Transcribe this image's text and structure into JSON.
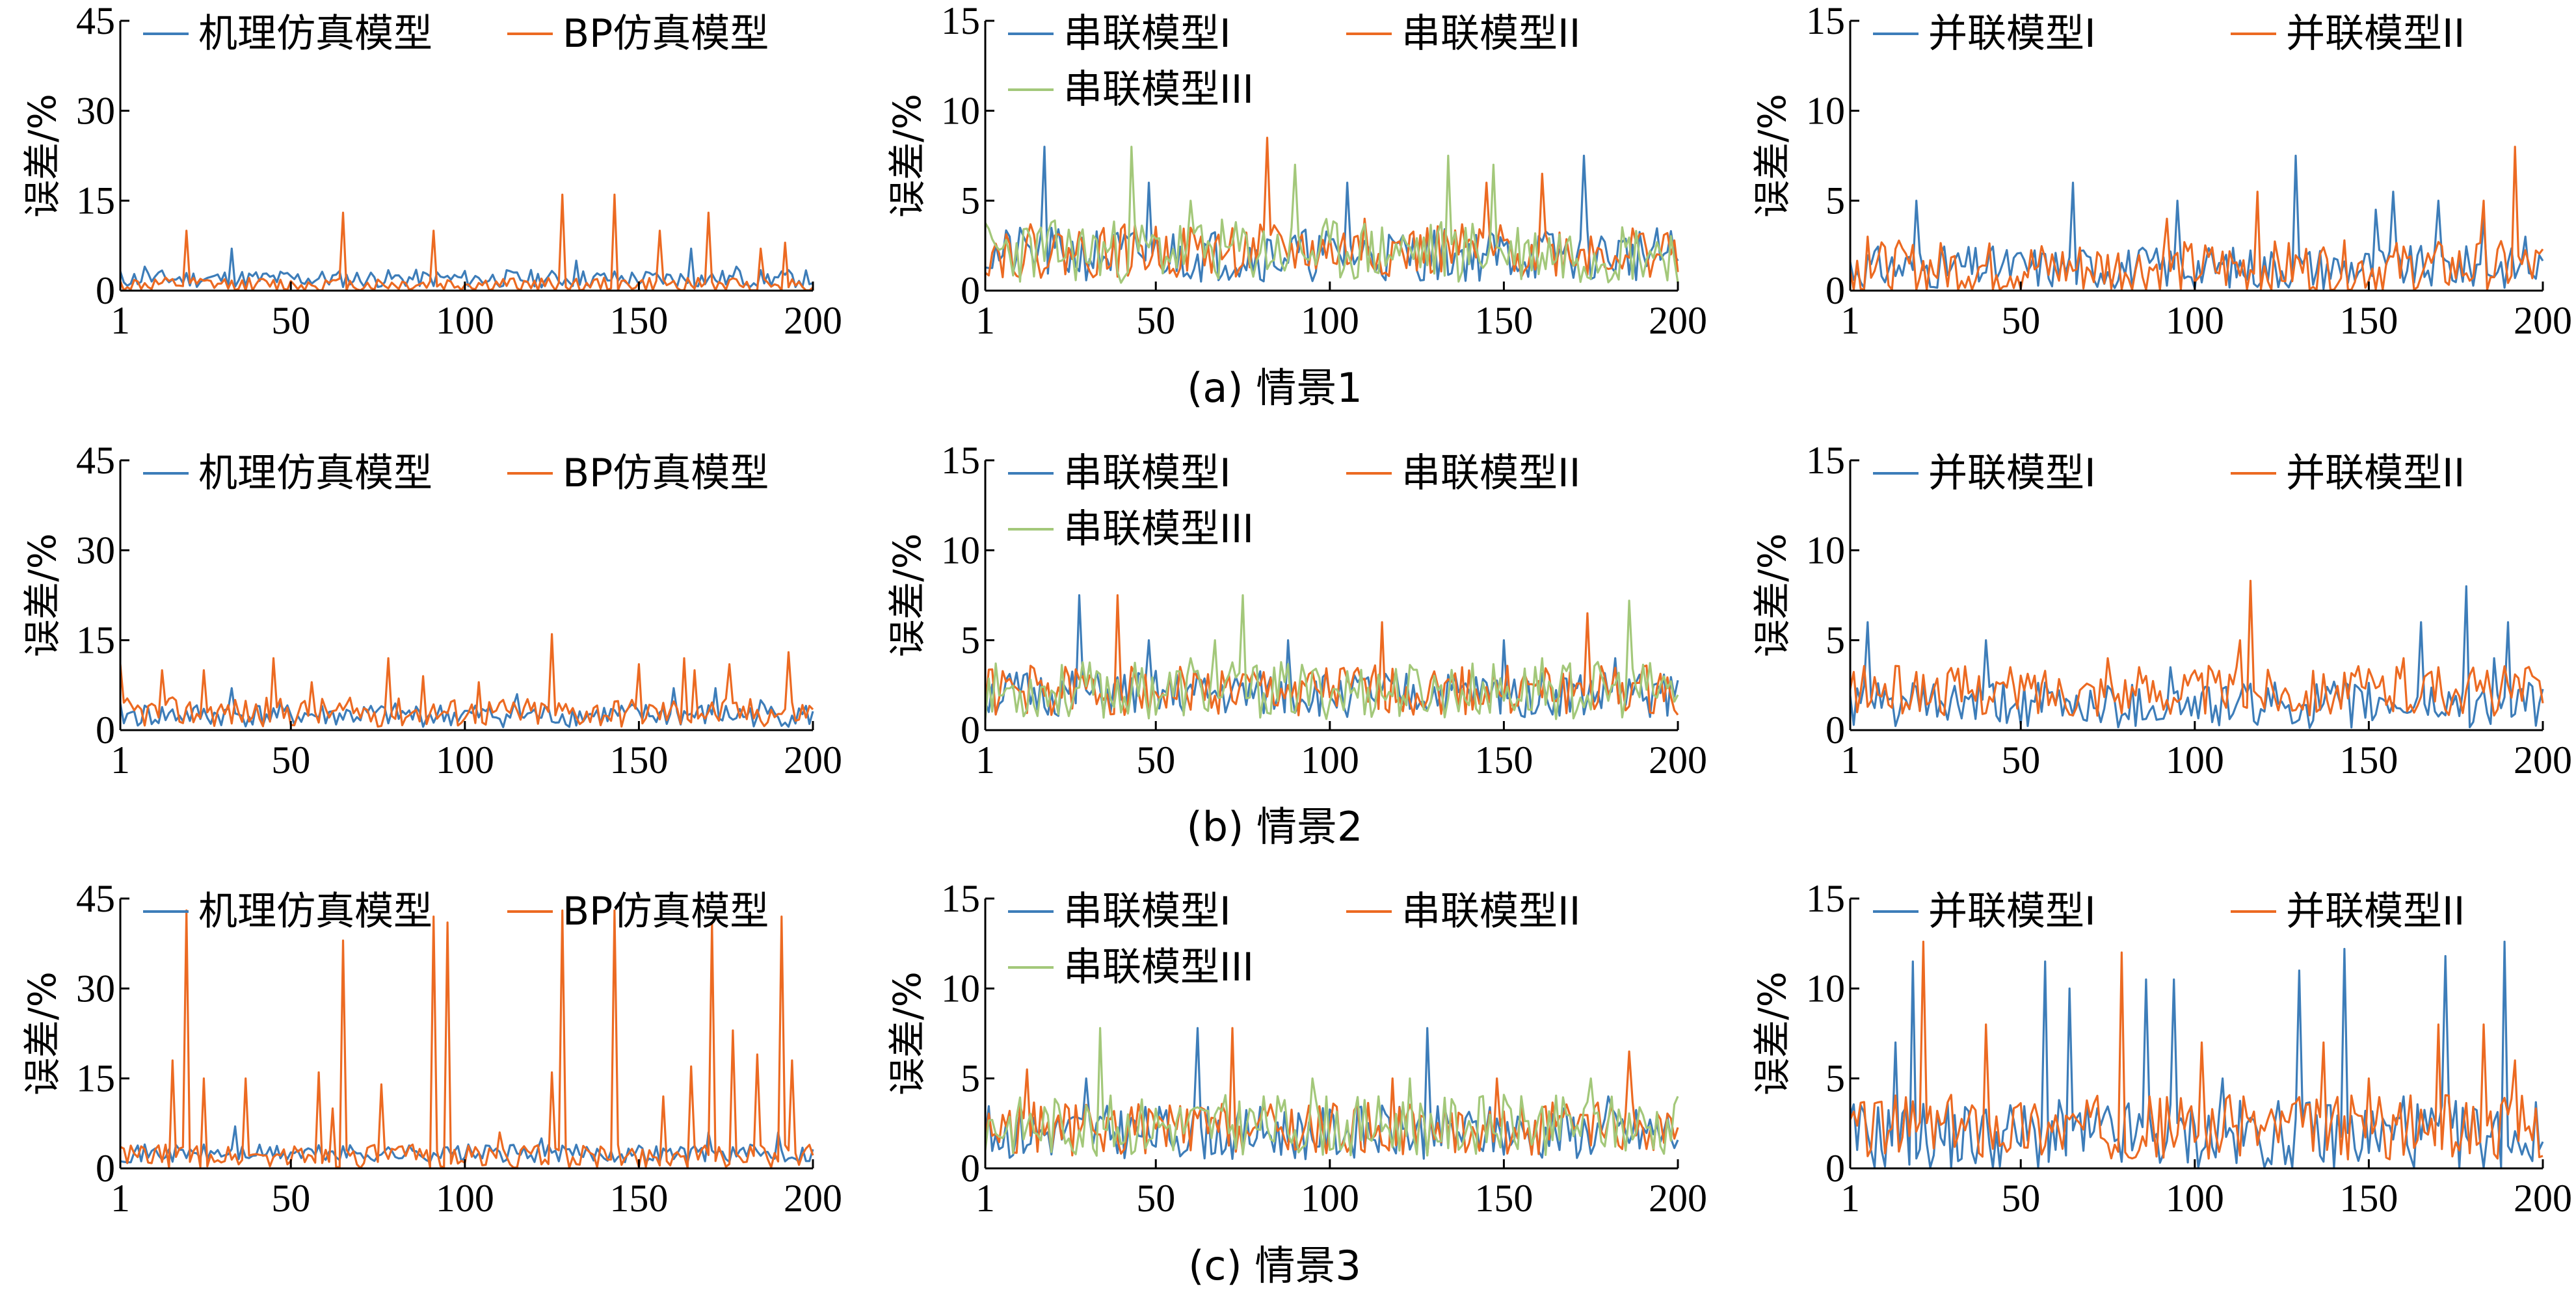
{
  "colors": {
    "blue": "#3d7db9",
    "orange": "#ec6a22",
    "green": "#a3c87a",
    "axis": "#000000"
  },
  "rows": [
    {
      "caption": "(a) 情景1"
    },
    {
      "caption": "(b) 情景2"
    },
    {
      "caption": "(c) 情景3"
    }
  ],
  "chart_data": [
    {
      "type": "line",
      "row": 0,
      "col": 0,
      "ylabel": "误差/%",
      "ylim": [
        0,
        45
      ],
      "yticks": [
        "0",
        "15",
        "30",
        "45"
      ],
      "xlim": [
        1,
        200
      ],
      "xticks": [
        "1",
        "50",
        "100",
        "150",
        "200"
      ],
      "series": [
        {
          "name": "机理仿真模型",
          "color": "blue",
          "base": 2,
          "noise": 1.5,
          "seed": 11,
          "peaks": [
            [
              33,
              7
            ],
            [
              132,
              5
            ],
            [
              165,
              7
            ],
            [
              178,
              4
            ],
            [
              8,
              4
            ]
          ]
        },
        {
          "name": "BP仿真模型",
          "color": "orange",
          "base": 1,
          "noise": 1.2,
          "seed": 12,
          "peaks": [
            [
              20,
              10
            ],
            [
              65,
              13
            ],
            [
              91,
              10
            ],
            [
              128,
              16
            ],
            [
              143,
              16
            ],
            [
              156,
              10
            ],
            [
              170,
              13
            ],
            [
              185,
              7
            ],
            [
              192,
              8
            ]
          ]
        }
      ]
    },
    {
      "type": "line",
      "row": 0,
      "col": 1,
      "ylabel": "误差/%",
      "ylim": [
        0,
        15
      ],
      "yticks": [
        "0",
        "5",
        "10",
        "15"
      ],
      "xlim": [
        1,
        200
      ],
      "xticks": [
        "1",
        "50",
        "100",
        "150",
        "200"
      ],
      "series": [
        {
          "name": "串联模型I",
          "color": "blue",
          "base": 2,
          "noise": 1.5,
          "seed": 21,
          "peaks": [
            [
              18,
              8
            ],
            [
              48,
              6
            ],
            [
              105,
              6
            ],
            [
              173,
              7.5
            ],
            [
              12,
              3
            ]
          ]
        },
        {
          "name": "串联模型II",
          "color": "orange",
          "base": 2.2,
          "noise": 1.5,
          "seed": 22,
          "peaks": [
            [
              82,
              8.5
            ],
            [
              145,
              6
            ],
            [
              161,
              6.5
            ],
            [
              110,
              4
            ]
          ]
        },
        {
          "name": "串联模型III",
          "color": "green",
          "base": 2.2,
          "noise": 1.8,
          "seed": 23,
          "peaks": [
            [
              43,
              8
            ],
            [
              90,
              7
            ],
            [
              134,
              7.5
            ],
            [
              147,
              7
            ],
            [
              60,
              5
            ]
          ]
        }
      ]
    },
    {
      "type": "line",
      "row": 0,
      "col": 2,
      "ylabel": "误差/%",
      "ylim": [
        0,
        15
      ],
      "yticks": [
        "0",
        "5",
        "10",
        "15"
      ],
      "xlim": [
        1,
        200
      ],
      "xticks": [
        "1",
        "50",
        "100",
        "150",
        "200"
      ],
      "series": [
        {
          "name": "并联模型I",
          "color": "blue",
          "base": 1.3,
          "noise": 1.2,
          "seed": 31,
          "peaks": [
            [
              20,
              5
            ],
            [
              65,
              6
            ],
            [
              95,
              5
            ],
            [
              129,
              7.5
            ],
            [
              152,
              4.5
            ],
            [
              157,
              5.5
            ],
            [
              170,
              5
            ],
            [
              183,
              4
            ],
            [
              195,
              3
            ]
          ]
        },
        {
          "name": "并联模型II",
          "color": "orange",
          "base": 1.3,
          "noise": 1.5,
          "seed": 32,
          "peaks": [
            [
              118,
              5.5
            ],
            [
              92,
              4
            ],
            [
              183,
              5
            ],
            [
              192,
              8
            ],
            [
              6,
              3
            ]
          ]
        }
      ]
    },
    {
      "type": "line",
      "row": 1,
      "col": 0,
      "ylabel": "误差/%",
      "ylim": [
        0,
        45
      ],
      "yticks": [
        "0",
        "15",
        "30",
        "45"
      ],
      "xlim": [
        1,
        200
      ],
      "xticks": [
        "1",
        "50",
        "100",
        "150",
        "200"
      ],
      "series": [
        {
          "name": "机理仿真模型",
          "color": "blue",
          "base": 2.5,
          "noise": 2,
          "seed": 41,
          "peaks": [
            [
              33,
              7
            ],
            [
              115,
              6
            ],
            [
              160,
              7
            ],
            [
              172,
              7
            ],
            [
              185,
              5
            ]
          ]
        },
        {
          "name": "BP仿真模型",
          "color": "orange",
          "base": 3,
          "noise": 2.5,
          "seed": 42,
          "peaks": [
            [
              1,
              11
            ],
            [
              13,
              10
            ],
            [
              25,
              10
            ],
            [
              45,
              12
            ],
            [
              78,
              12
            ],
            [
              88,
              9
            ],
            [
              125,
              16
            ],
            [
              150,
              11
            ],
            [
              163,
              12
            ],
            [
              166,
              10
            ],
            [
              176,
              11
            ],
            [
              193,
              13
            ],
            [
              56,
              8
            ],
            [
              104,
              8
            ]
          ]
        }
      ]
    },
    {
      "type": "line",
      "row": 1,
      "col": 1,
      "ylabel": "误差/%",
      "ylim": [
        0,
        15
      ],
      "yticks": [
        "0",
        "5",
        "10",
        "15"
      ],
      "xlim": [
        1,
        200
      ],
      "xticks": [
        "1",
        "50",
        "100",
        "150",
        "200"
      ],
      "series": [
        {
          "name": "串联模型I",
          "color": "blue",
          "base": 2,
          "noise": 1.3,
          "seed": 51,
          "peaks": [
            [
              28,
              7.5
            ],
            [
              48,
              5
            ],
            [
              88,
              5
            ],
            [
              150,
              5
            ],
            [
              182,
              4
            ]
          ]
        },
        {
          "name": "串联模型II",
          "color": "orange",
          "base": 2.2,
          "noise": 1.4,
          "seed": 52,
          "peaks": [
            [
              39,
              7.5
            ],
            [
              115,
              6
            ],
            [
              174,
              6.5
            ],
            [
              138,
              3.5
            ]
          ]
        },
        {
          "name": "串联模型III",
          "color": "green",
          "base": 2.2,
          "noise": 1.6,
          "seed": 53,
          "peaks": [
            [
              67,
              5
            ],
            [
              75,
              7.5
            ],
            [
              186,
              7.2
            ],
            [
              161,
              4
            ],
            [
              60,
              4
            ]
          ]
        }
      ]
    },
    {
      "type": "line",
      "row": 1,
      "col": 2,
      "ylabel": "误差/%",
      "ylim": [
        0,
        15
      ],
      "yticks": [
        "0",
        "5",
        "10",
        "15"
      ],
      "xlim": [
        1,
        200
      ],
      "xticks": [
        "1",
        "50",
        "100",
        "150",
        "200"
      ],
      "series": [
        {
          "name": "并联模型I",
          "color": "blue",
          "base": 1.4,
          "noise": 1.3,
          "seed": 61,
          "peaks": [
            [
              6,
              6
            ],
            [
              40,
              5
            ],
            [
              165,
              6
            ],
            [
              178,
              8
            ],
            [
              190,
              6
            ],
            [
              186,
              4
            ],
            [
              93,
              3.5
            ]
          ]
        },
        {
          "name": "并联模型II",
          "color": "orange",
          "base": 2.2,
          "noise": 1.4,
          "seed": 62,
          "peaks": [
            [
              116,
              8.3
            ],
            [
              113,
              5
            ],
            [
              75,
              4
            ],
            [
              160,
              4
            ],
            [
              170,
              3.5
            ]
          ]
        }
      ]
    },
    {
      "type": "line",
      "row": 2,
      "col": 0,
      "ylabel": "误差/%",
      "ylim": [
        0,
        45
      ],
      "yticks": [
        "0",
        "15",
        "30",
        "45"
      ],
      "xlim": [
        1,
        200
      ],
      "xticks": [
        "1",
        "50",
        "100",
        "150",
        "200"
      ],
      "series": [
        {
          "name": "机理仿真模型",
          "color": "blue",
          "base": 2.5,
          "noise": 1.5,
          "seed": 71,
          "peaks": [
            [
              34,
              7
            ],
            [
              122,
              5
            ],
            [
              170,
              6
            ],
            [
              190,
              6
            ]
          ]
        },
        {
          "name": "BP仿真模型",
          "color": "orange",
          "base": 2,
          "noise": 2,
          "seed": 72,
          "peaks": [
            [
              16,
              18
            ],
            [
              20,
              43
            ],
            [
              25,
              15
            ],
            [
              37,
              15
            ],
            [
              58,
              16
            ],
            [
              65,
              38
            ],
            [
              76,
              14
            ],
            [
              91,
              42
            ],
            [
              95,
              41
            ],
            [
              125,
              16
            ],
            [
              128,
              43
            ],
            [
              143,
              43
            ],
            [
              157,
              12
            ],
            [
              165,
              17
            ],
            [
              171,
              41
            ],
            [
              177,
              23
            ],
            [
              184,
              19
            ],
            [
              191,
              42
            ],
            [
              194,
              18
            ],
            [
              62,
              10
            ],
            [
              110,
              6
            ]
          ]
        }
      ]
    },
    {
      "type": "line",
      "row": 2,
      "col": 1,
      "ylabel": "误差/%",
      "ylim": [
        0,
        15
      ],
      "yticks": [
        "0",
        "5",
        "10",
        "15"
      ],
      "xlim": [
        1,
        200
      ],
      "xticks": [
        "1",
        "50",
        "100",
        "150",
        "200"
      ],
      "series": [
        {
          "name": "串联模型I",
          "color": "blue",
          "base": 2,
          "noise": 1.5,
          "seed": 81,
          "peaks": [
            [
              30,
              5
            ],
            [
              62,
              7.8
            ],
            [
              128,
              7.8
            ],
            [
              180,
              4
            ]
          ]
        },
        {
          "name": "串联模型II",
          "color": "orange",
          "base": 2.2,
          "noise": 1.5,
          "seed": 82,
          "peaks": [
            [
              13,
              5.5
            ],
            [
              72,
              7.8
            ],
            [
              118,
              5
            ],
            [
              148,
              5
            ],
            [
              186,
              6.5
            ]
          ]
        },
        {
          "name": "串联模型III",
          "color": "green",
          "base": 2.4,
          "noise": 1.7,
          "seed": 83,
          "peaks": [
            [
              34,
              7.8
            ],
            [
              95,
              5
            ],
            [
              123,
              5
            ],
            [
              175,
              5
            ],
            [
              200,
              4
            ]
          ]
        }
      ]
    },
    {
      "type": "line",
      "row": 2,
      "col": 2,
      "ylabel": "误差/%",
      "ylim": [
        0,
        15
      ],
      "yticks": [
        "0",
        "5",
        "10",
        "15"
      ],
      "xlim": [
        1,
        200
      ],
      "xticks": [
        "1",
        "50",
        "100",
        "150",
        "200"
      ],
      "series": [
        {
          "name": "并联模型I",
          "color": "blue",
          "base": 1.8,
          "noise": 2,
          "seed": 91,
          "peaks": [
            [
              14,
              7
            ],
            [
              19,
              11.5
            ],
            [
              57,
              11.5
            ],
            [
              64,
              10
            ],
            [
              86,
              10.5
            ],
            [
              94,
              10.5
            ],
            [
              130,
              11
            ],
            [
              143,
              12.2
            ],
            [
              172,
              11.8
            ],
            [
              189,
              12.6
            ],
            [
              108,
              5
            ],
            [
              160,
              4
            ]
          ]
        },
        {
          "name": "并联模型II",
          "color": "orange",
          "base": 2.3,
          "noise": 1.8,
          "seed": 92,
          "peaks": [
            [
              22,
              12.6
            ],
            [
              40,
              8
            ],
            [
              79,
              12
            ],
            [
              102,
              7
            ],
            [
              137,
              7
            ],
            [
              170,
              8
            ],
            [
              183,
              8
            ],
            [
              192,
              6
            ],
            [
              114,
              4
            ],
            [
              150,
              5
            ]
          ]
        }
      ]
    }
  ]
}
